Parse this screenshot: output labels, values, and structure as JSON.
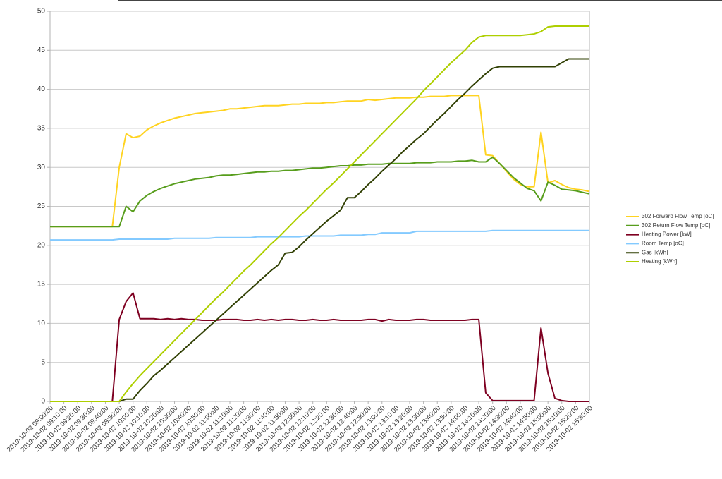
{
  "chart_data": {
    "type": "line",
    "categories": [
      "2019-10-02 09:00:00",
      null,
      "2019-10-02 09:10:00",
      null,
      "2019-10-02 09:20:00",
      null,
      "2019-10-02 09:30:00",
      null,
      "2019-10-02 09:40:00",
      null,
      "2019-10-02 09:50:00",
      null,
      "2019-10-02 10:00:00",
      null,
      "2019-10-02 10:10:00",
      null,
      "2019-10-02 10:20:00",
      null,
      "2019-10-02 10:30:00",
      null,
      "2019-10-02 10:40:00",
      null,
      "2019-10-02 10:50:00",
      null,
      "2019-10-02 11:00:00",
      null,
      "2019-10-02 11:10:00",
      null,
      "2019-10-02 11:20:00",
      null,
      "2019-10-02 11:30:00",
      null,
      "2019-10-02 11:40:00",
      null,
      "2019-10-02 11:50:00",
      null,
      "2019-10-02 12:00:00",
      null,
      "2019-10-02 12:10:00",
      null,
      "2019-10-02 12:20:00",
      null,
      "2019-10-02 12:30:00",
      null,
      "2019-10-02 12:40:00",
      null,
      "2019-10-02 12:50:00",
      null,
      "2019-10-02 13:00:00",
      null,
      "2019-10-02 13:10:00",
      null,
      "2019-10-02 13:20:00",
      null,
      "2019-10-02 13:30:00",
      null,
      "2019-10-02 13:40:00",
      null,
      "2019-10-02 13:50:00",
      null,
      "2019-10-02 14:00:00",
      null,
      "2019-10-02 14:10:00",
      null,
      "2019-10-02 14:20:00",
      null,
      "2019-10-02 14:30:00",
      null,
      "2019-10-02 14:40:00",
      null,
      "2019-10-02 14:50:00",
      null,
      "2019-10-02 15:00:00",
      null,
      "2019-10-02 15:10:00",
      null,
      "2019-10-02 15:20:00",
      null,
      "2019-10-02 15:30:00"
    ],
    "series": [
      {
        "name": "302 Forward Flow Temp [oC]",
        "color": "#ffd320",
        "values": [
          22.4,
          22.4,
          22.4,
          22.4,
          22.4,
          22.4,
          22.4,
          22.4,
          22.4,
          22.4,
          30,
          34.3,
          33.8,
          34,
          34.8,
          35.3,
          35.7,
          36,
          36.3,
          36.5,
          36.7,
          36.9,
          37,
          37.1,
          37.2,
          37.3,
          37.5,
          37.5,
          37.6,
          37.7,
          37.8,
          37.9,
          37.9,
          37.9,
          38,
          38.1,
          38.1,
          38.2,
          38.2,
          38.2,
          38.3,
          38.3,
          38.4,
          38.5,
          38.5,
          38.5,
          38.7,
          38.6,
          38.7,
          38.8,
          38.9,
          38.9,
          38.9,
          39,
          39,
          39.1,
          39.1,
          39.1,
          39.2,
          39.2,
          39.2,
          39.2,
          39.2,
          31.6,
          31.5,
          30.5,
          29.5,
          28.5,
          27.8,
          27.5,
          27.5,
          34.5,
          28,
          28.3,
          27.8,
          27.4,
          27.2,
          27.1,
          26.9
        ]
      },
      {
        "name": "302 Return Flow Temp [oC]",
        "color": "#579d1c",
        "values": [
          22.4,
          22.4,
          22.4,
          22.4,
          22.4,
          22.4,
          22.4,
          22.4,
          22.4,
          22.4,
          22.4,
          25,
          24.3,
          25.7,
          26.4,
          26.9,
          27.3,
          27.6,
          27.9,
          28.1,
          28.3,
          28.5,
          28.6,
          28.7,
          28.9,
          29,
          29,
          29.1,
          29.2,
          29.3,
          29.4,
          29.4,
          29.5,
          29.5,
          29.6,
          29.6,
          29.7,
          29.8,
          29.9,
          29.9,
          30,
          30.1,
          30.2,
          30.2,
          30.3,
          30.3,
          30.4,
          30.4,
          30.4,
          30.5,
          30.5,
          30.5,
          30.5,
          30.6,
          30.6,
          30.6,
          30.7,
          30.7,
          30.7,
          30.8,
          30.8,
          30.9,
          30.7,
          30.7,
          31.3,
          30.5,
          29.6,
          28.7,
          28,
          27.3,
          27,
          25.7,
          28.1,
          27.7,
          27.2,
          27.1,
          27,
          26.8,
          26.6
        ]
      },
      {
        "name": "Heating Power [kW]",
        "color": "#7e0021",
        "values": [
          0,
          0,
          0,
          0,
          0,
          0,
          0,
          0,
          0,
          0,
          10.5,
          12.8,
          13.9,
          10.6,
          10.6,
          10.6,
          10.5,
          10.6,
          10.5,
          10.6,
          10.5,
          10.5,
          10.4,
          10.4,
          10.4,
          10.5,
          10.5,
          10.5,
          10.4,
          10.4,
          10.5,
          10.4,
          10.5,
          10.4,
          10.5,
          10.5,
          10.4,
          10.4,
          10.5,
          10.4,
          10.4,
          10.5,
          10.4,
          10.4,
          10.4,
          10.4,
          10.5,
          10.5,
          10.3,
          10.5,
          10.4,
          10.4,
          10.4,
          10.5,
          10.5,
          10.4,
          10.4,
          10.4,
          10.4,
          10.4,
          10.4,
          10.5,
          10.5,
          1.1,
          0.1,
          0.1,
          0.1,
          0.1,
          0.1,
          0.1,
          0.1,
          9.4,
          3.6,
          0.4,
          0.1,
          0,
          0,
          0,
          0
        ]
      },
      {
        "name": "Room Temp [oC]",
        "color": "#83caff",
        "values": [
          20.7,
          20.7,
          20.7,
          20.7,
          20.7,
          20.7,
          20.7,
          20.7,
          20.7,
          20.7,
          20.8,
          20.8,
          20.8,
          20.8,
          20.8,
          20.8,
          20.8,
          20.8,
          20.9,
          20.9,
          20.9,
          20.9,
          20.9,
          20.9,
          21,
          21,
          21,
          21,
          21,
          21,
          21.1,
          21.1,
          21.1,
          21.1,
          21.1,
          21.1,
          21.1,
          21.2,
          21.2,
          21.2,
          21.2,
          21.2,
          21.3,
          21.3,
          21.3,
          21.3,
          21.4,
          21.4,
          21.6,
          21.6,
          21.6,
          21.6,
          21.6,
          21.8,
          21.8,
          21.8,
          21.8,
          21.8,
          21.8,
          21.8,
          21.8,
          21.8,
          21.8,
          21.8,
          21.9,
          21.9,
          21.9,
          21.9,
          21.9,
          21.9,
          21.9,
          21.9,
          21.9,
          21.9,
          21.9,
          21.9,
          21.9,
          21.9,
          21.9
        ]
      },
      {
        "name": "Gas [kWh]",
        "color": "#314004",
        "values": [
          0,
          0,
          0,
          0,
          0,
          0,
          0,
          0,
          0,
          0,
          0,
          0.3,
          0.3,
          1.4,
          2.3,
          3.3,
          4,
          4.8,
          5.6,
          6.4,
          7.2,
          8,
          8.8,
          9.6,
          10.4,
          11.2,
          12,
          12.8,
          13.6,
          14.4,
          15.2,
          16,
          16.8,
          17.5,
          19,
          19.1,
          19.8,
          20.7,
          21.5,
          22.3,
          23.1,
          23.8,
          24.5,
          26.1,
          26.1,
          26.9,
          27.8,
          28.6,
          29.5,
          30.3,
          31.1,
          32,
          32.8,
          33.6,
          34.3,
          35.2,
          36.1,
          36.9,
          37.8,
          38.7,
          39.5,
          40.4,
          41.2,
          42,
          42.7,
          42.9,
          42.9,
          42.9,
          42.9,
          42.9,
          42.9,
          42.9,
          42.9,
          42.9,
          43.4,
          43.9,
          43.9,
          43.9,
          43.9
        ]
      },
      {
        "name": "Heating [kWh]",
        "color": "#aecf00",
        "values": [
          0,
          0,
          0,
          0,
          0,
          0,
          0,
          0,
          0,
          0,
          0,
          1.2,
          2.3,
          3.3,
          4.2,
          5.1,
          6,
          6.9,
          7.8,
          8.7,
          9.6,
          10.5,
          11.4,
          12.3,
          13.2,
          14,
          14.9,
          15.8,
          16.7,
          17.5,
          18.4,
          19.3,
          20.2,
          21,
          21.9,
          22.8,
          23.7,
          24.5,
          25.4,
          26.3,
          27.2,
          28,
          28.9,
          29.8,
          30.7,
          31.6,
          32.5,
          33.4,
          34.3,
          35.2,
          36.1,
          37,
          37.9,
          38.8,
          39.8,
          40.7,
          41.6,
          42.5,
          43.4,
          44.2,
          45,
          46,
          46.7,
          46.9,
          46.9,
          46.9,
          46.9,
          46.9,
          46.9,
          47,
          47.1,
          47.4,
          48,
          48.1,
          48.1,
          48.1,
          48.1,
          48.1,
          48.1
        ]
      }
    ],
    "ylim": [
      0,
      50
    ],
    "yticks": [
      0,
      5,
      10,
      15,
      20,
      25,
      30,
      35,
      40,
      45,
      50
    ],
    "grid": true,
    "legend": "right"
  }
}
